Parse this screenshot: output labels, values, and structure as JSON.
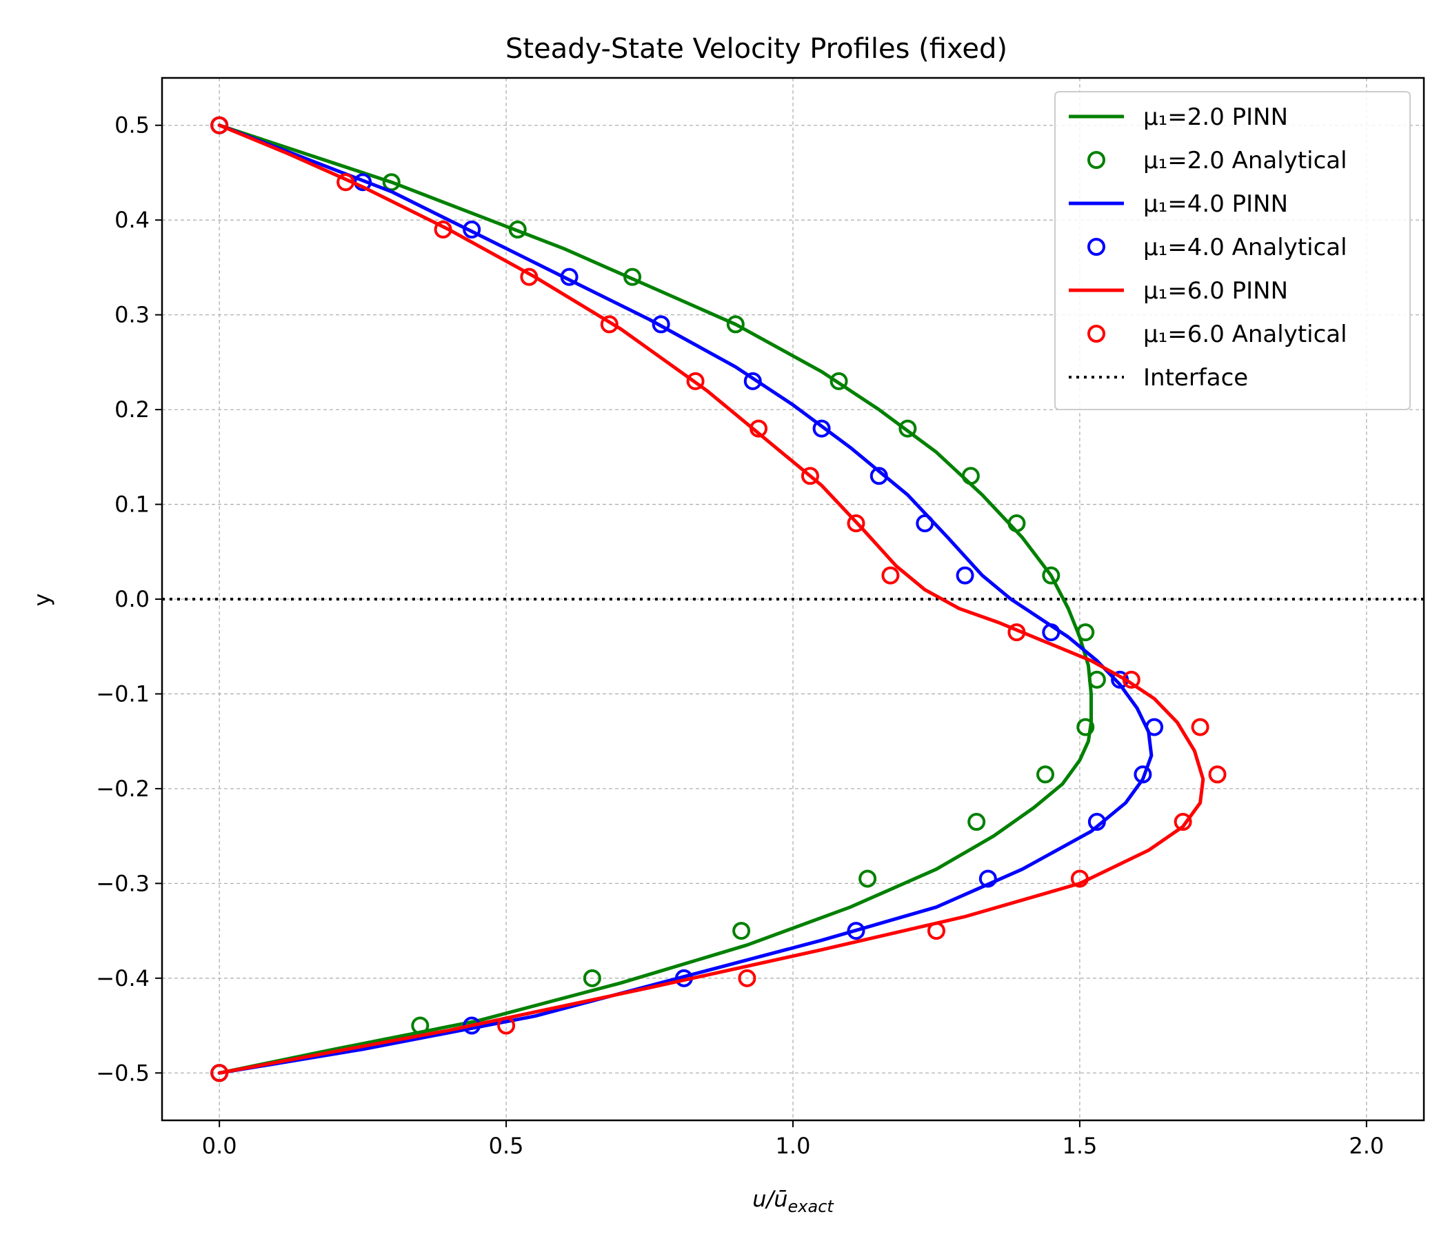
{
  "chart_data": {
    "type": "line",
    "title": "Steady-State Velocity Profiles (fixed)",
    "xlabel_main": "u/ū",
    "xlabel_sub": "exact",
    "ylabel": "y",
    "xlim": [
      -0.1,
      2.1
    ],
    "ylim": [
      -0.55,
      0.55
    ],
    "xticks": [
      0.0,
      0.5,
      1.0,
      1.5,
      2.0
    ],
    "xtick_labels": [
      "0.0",
      "0.5",
      "1.0",
      "1.5",
      "2.0"
    ],
    "yticks": [
      0.5,
      0.4,
      0.3,
      0.2,
      0.1,
      0.0,
      -0.1,
      -0.2,
      -0.3,
      -0.4,
      -0.5
    ],
    "ytick_labels": [
      "0.5",
      "0.4",
      "0.3",
      "0.2",
      "0.1",
      "0.0",
      "−0.1",
      "−0.2",
      "−0.3",
      "−0.4",
      "−0.5"
    ],
    "grid": true,
    "legend_position": "upper right",
    "interface": {
      "name": "Interface",
      "y": 0.0,
      "color": "#000000"
    },
    "series": [
      {
        "name": "μ₁=2.0 PINN",
        "kind": "line",
        "color": "#008000",
        "x": [
          0.0,
          0.15,
          0.3,
          0.45,
          0.6,
          0.75,
          0.9,
          1.05,
          1.15,
          1.25,
          1.33,
          1.4,
          1.45,
          1.48,
          1.5,
          1.515,
          1.52,
          1.52,
          1.515,
          1.5,
          1.47,
          1.42,
          1.35,
          1.25,
          1.1,
          0.92,
          0.7,
          0.45,
          0.2,
          0.0
        ],
        "y": [
          0.5,
          0.47,
          0.44,
          0.405,
          0.37,
          0.33,
          0.29,
          0.24,
          0.2,
          0.155,
          0.11,
          0.065,
          0.025,
          -0.01,
          -0.04,
          -0.07,
          -0.1,
          -0.13,
          -0.15,
          -0.17,
          -0.195,
          -0.22,
          -0.25,
          -0.285,
          -0.325,
          -0.365,
          -0.405,
          -0.445,
          -0.475,
          -0.5
        ]
      },
      {
        "name": "μ₁=2.0 Analytical",
        "kind": "markers",
        "color": "#008000",
        "x": [
          0.0,
          0.3,
          0.52,
          0.72,
          0.9,
          1.08,
          1.2,
          1.31,
          1.39,
          1.45,
          1.51,
          1.53,
          1.51,
          1.44,
          1.32,
          1.13,
          0.91,
          0.65,
          0.35,
          0.0
        ],
        "y": [
          0.5,
          0.44,
          0.39,
          0.34,
          0.29,
          0.23,
          0.18,
          0.13,
          0.08,
          0.025,
          -0.035,
          -0.085,
          -0.135,
          -0.185,
          -0.235,
          -0.295,
          -0.35,
          -0.4,
          -0.45,
          -0.5
        ]
      },
      {
        "name": "μ₁=4.0 PINN",
        "kind": "line",
        "color": "#0000ff",
        "x": [
          0.0,
          0.15,
          0.3,
          0.45,
          0.6,
          0.75,
          0.9,
          1.0,
          1.1,
          1.2,
          1.27,
          1.33,
          1.38,
          1.43,
          1.48,
          1.53,
          1.57,
          1.6,
          1.62,
          1.625,
          1.61,
          1.58,
          1.52,
          1.4,
          1.25,
          1.05,
          0.8,
          0.55,
          0.25,
          0.0
        ],
        "y": [
          0.5,
          0.465,
          0.43,
          0.385,
          0.34,
          0.295,
          0.245,
          0.205,
          0.16,
          0.11,
          0.065,
          0.025,
          0.0,
          -0.02,
          -0.04,
          -0.065,
          -0.09,
          -0.115,
          -0.14,
          -0.165,
          -0.19,
          -0.215,
          -0.245,
          -0.285,
          -0.325,
          -0.36,
          -0.4,
          -0.44,
          -0.475,
          -0.5
        ]
      },
      {
        "name": "μ₁=4.0 Analytical",
        "kind": "markers",
        "color": "#0000ff",
        "x": [
          0.0,
          0.25,
          0.44,
          0.61,
          0.77,
          0.93,
          1.05,
          1.15,
          1.23,
          1.3,
          1.45,
          1.57,
          1.63,
          1.61,
          1.53,
          1.34,
          1.11,
          0.81,
          0.44,
          0.0
        ],
        "y": [
          0.5,
          0.44,
          0.39,
          0.34,
          0.29,
          0.23,
          0.18,
          0.13,
          0.08,
          0.025,
          -0.035,
          -0.085,
          -0.135,
          -0.185,
          -0.235,
          -0.295,
          -0.35,
          -0.4,
          -0.45,
          -0.5
        ]
      },
      {
        "name": "μ₁=6.0 PINN",
        "kind": "line",
        "color": "#ff0000",
        "x": [
          0.0,
          0.12,
          0.25,
          0.4,
          0.55,
          0.7,
          0.85,
          0.95,
          1.05,
          1.12,
          1.18,
          1.23,
          1.29,
          1.36,
          1.44,
          1.52,
          1.58,
          1.63,
          1.67,
          1.7,
          1.715,
          1.71,
          1.68,
          1.62,
          1.5,
          1.3,
          1.05,
          0.75,
          0.4,
          0.0
        ],
        "y": [
          0.5,
          0.47,
          0.435,
          0.39,
          0.34,
          0.285,
          0.22,
          0.17,
          0.12,
          0.075,
          0.035,
          0.01,
          -0.01,
          -0.025,
          -0.045,
          -0.065,
          -0.085,
          -0.105,
          -0.13,
          -0.16,
          -0.19,
          -0.215,
          -0.24,
          -0.265,
          -0.3,
          -0.335,
          -0.37,
          -0.41,
          -0.455,
          -0.5
        ]
      },
      {
        "name": "μ₁=6.0 Analytical",
        "kind": "markers",
        "color": "#ff0000",
        "x": [
          0.0,
          0.22,
          0.39,
          0.54,
          0.68,
          0.83,
          0.94,
          1.03,
          1.11,
          1.17,
          1.39,
          1.59,
          1.71,
          1.74,
          1.68,
          1.5,
          1.25,
          0.92,
          0.5,
          0.0
        ],
        "y": [
          0.5,
          0.44,
          0.39,
          0.34,
          0.29,
          0.23,
          0.18,
          0.13,
          0.08,
          0.025,
          -0.035,
          -0.085,
          -0.135,
          -0.185,
          -0.235,
          -0.295,
          -0.35,
          -0.4,
          -0.45,
          -0.5
        ]
      }
    ]
  }
}
